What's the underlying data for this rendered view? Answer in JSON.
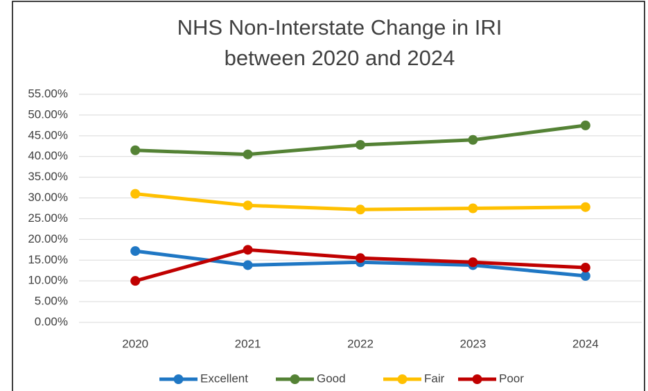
{
  "chart_data": {
    "type": "line",
    "title": "NHS Non-Interstate Change in IRI between 2020 and 2024",
    "categories": [
      "2020",
      "2021",
      "2022",
      "2023",
      "2024"
    ],
    "series": [
      {
        "name": "Excellent",
        "color": "#1f77c4",
        "values": [
          17.2,
          13.8,
          14.5,
          13.8,
          11.2
        ]
      },
      {
        "name": "Good",
        "color": "#548235",
        "values": [
          41.5,
          40.5,
          42.8,
          44.0,
          47.5
        ]
      },
      {
        "name": "Fair",
        "color": "#ffc000",
        "values": [
          31.0,
          28.2,
          27.2,
          27.5,
          27.8
        ]
      },
      {
        "name": "Poor",
        "color": "#c00000",
        "values": [
          10.0,
          17.5,
          15.5,
          14.5,
          13.2
        ]
      }
    ],
    "ylim": [
      0,
      55
    ],
    "yticks": [
      {
        "value": 0,
        "label": "0.00%"
      },
      {
        "value": 5,
        "label": "5.00%"
      },
      {
        "value": 10,
        "label": "10.00%"
      },
      {
        "value": 15,
        "label": "15.00%"
      },
      {
        "value": 20,
        "label": "20.00%"
      },
      {
        "value": 25,
        "label": "25.00%"
      },
      {
        "value": 30,
        "label": "30.00%"
      },
      {
        "value": 35,
        "label": "35.00%"
      },
      {
        "value": 40,
        "label": "40.00%"
      },
      {
        "value": 45,
        "label": "45.00%"
      },
      {
        "value": 50,
        "label": "50.00%"
      },
      {
        "value": 55,
        "label": "55.00%"
      }
    ],
    "grid": true,
    "legend": "bottom"
  }
}
